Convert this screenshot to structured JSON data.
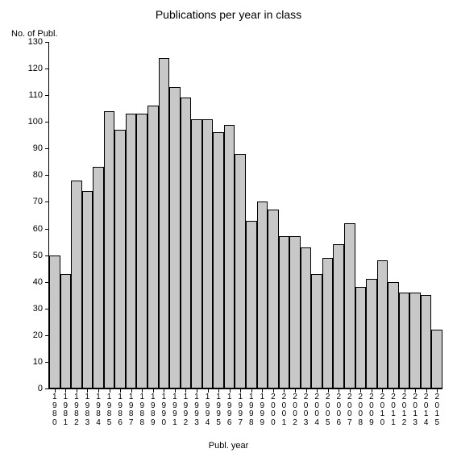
{
  "chart": {
    "type": "bar",
    "title": "Publications per year in class",
    "title_fontsize": 14,
    "y_axis_title": "No. of Publ.",
    "x_axis_title": "Publ. year",
    "label_fontsize": 11,
    "tick_fontsize": 11,
    "background_color": "#ffffff",
    "bar_color": "#c8c8c8",
    "bar_border_color": "#000000",
    "axis_color": "#000000",
    "ylim": [
      0,
      130
    ],
    "ytick_step": 10,
    "categories": [
      "1980",
      "1981",
      "1982",
      "1983",
      "1984",
      "1985",
      "1986",
      "1987",
      "1988",
      "1989",
      "1990",
      "1991",
      "1992",
      "1993",
      "1994",
      "1995",
      "1996",
      "1997",
      "1998",
      "1999",
      "2000",
      "2001",
      "2002",
      "2003",
      "2004",
      "2005",
      "2006",
      "2007",
      "2008",
      "2009",
      "2010",
      "2011",
      "2012",
      "2013",
      "2014",
      "2015"
    ],
    "values": [
      50,
      43,
      78,
      74,
      83,
      104,
      97,
      103,
      103,
      106,
      124,
      113,
      109,
      101,
      101,
      96,
      99,
      88,
      63,
      70,
      67,
      57,
      57,
      53,
      43,
      49,
      54,
      62,
      38,
      41,
      48,
      40,
      36,
      36,
      35,
      22
    ],
    "bar_width_ratio": 1.0
  }
}
